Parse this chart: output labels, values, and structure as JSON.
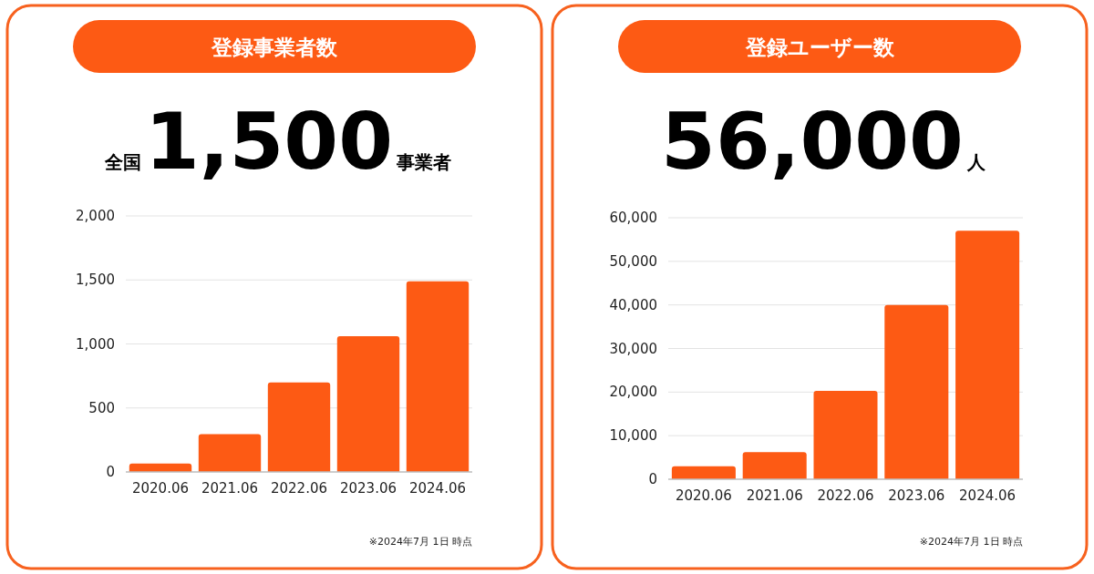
{
  "chart_data": [
    {
      "type": "bar",
      "title": "登録事業者数",
      "categories": [
        "2020.06",
        "2021.06",
        "2022.06",
        "2023.06",
        "2024.06"
      ],
      "values": [
        65,
        295,
        700,
        1060,
        1490
      ],
      "color": "#fd5a14",
      "ylim": [
        0,
        2000
      ],
      "yticks": [
        0,
        {
          "value": 500,
          "label": "500"
        },
        {
          "value": 1000,
          "label": "1,000"
        },
        {
          "value": 1500,
          "label": "1,500"
        },
        {
          "value": 2000,
          "label": "2,000"
        }
      ],
      "grid": "y",
      "annotations": [
        "全国",
        "1,500",
        "事業者",
        "※2024年7月 1日 時点"
      ]
    },
    {
      "type": "bar",
      "title": "登録ユーザー数",
      "categories": [
        "2020.06",
        "2021.06",
        "2022.06",
        "2023.06",
        "2024.06"
      ],
      "values": [
        3000,
        6200,
        20300,
        40000,
        57000
      ],
      "color": "#fd5a14",
      "ylim": [
        0,
        60000
      ],
      "yticks": [
        0,
        {
          "value": 10000,
          "label": "10,000"
        },
        {
          "value": 20000,
          "label": "20,000"
        },
        {
          "value": 30000,
          "label": "30,000"
        },
        {
          "value": 40000,
          "label": "40,000"
        },
        {
          "value": 50000,
          "label": "50,000"
        },
        {
          "value": 60000,
          "label": "60,000"
        }
      ],
      "grid": "y",
      "annotations": [
        "56,000",
        "人",
        "※2024年7月 1日 時点"
      ]
    }
  ]
}
